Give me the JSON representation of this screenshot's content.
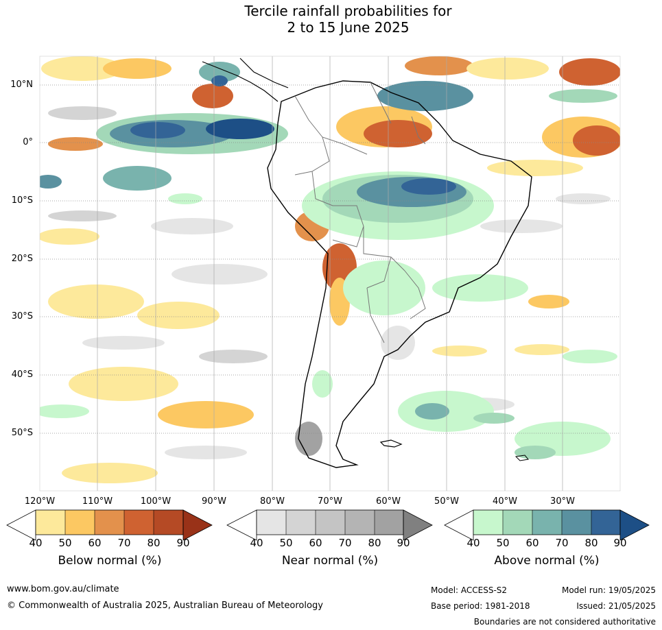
{
  "title": {
    "line1": "Tercile rainfall probabilities for",
    "line2": "2 to 15 June 2025"
  },
  "map": {
    "lat_labels": [
      "10°N",
      "0°",
      "10°S",
      "20°S",
      "30°S",
      "40°S",
      "50°S"
    ],
    "lon_labels": [
      "120°W",
      "110°W",
      "100°W",
      "90°W",
      "80°W",
      "70°W",
      "60°W",
      "50°W",
      "40°W",
      "30°W"
    ]
  },
  "colorbars": {
    "below": {
      "title": "Below normal (%)",
      "ticks": [
        "40",
        "50",
        "60",
        "70",
        "80",
        "90"
      ],
      "colors": [
        "#ffffff",
        "#fde99b",
        "#fcc862",
        "#e3914c",
        "#cf6231",
        "#b54a25",
        "#993218"
      ]
    },
    "near": {
      "title": "Near normal (%)",
      "ticks": [
        "40",
        "50",
        "60",
        "70",
        "80",
        "90"
      ],
      "colors": [
        "#ffffff",
        "#e5e5e5",
        "#d4d4d4",
        "#c4c4c4",
        "#b4b4b4",
        "#a2a2a2",
        "#808080"
      ]
    },
    "above": {
      "title": "Above normal (%)",
      "ticks": [
        "40",
        "50",
        "60",
        "70",
        "80",
        "90"
      ],
      "colors": [
        "#ffffff",
        "#c7f7cd",
        "#a3d8b8",
        "#79b3ad",
        "#5a91a0",
        "#336496",
        "#1d4f86"
      ]
    }
  },
  "footer": {
    "website": "www.bom.gov.au/climate",
    "copyright": "© Commonwealth of Australia 2025, Australian Bureau of Meteorology",
    "model": "Model: ACCESS-S2",
    "base_period": "Base period: 1981-2018",
    "model_run": "Model run: 19/05/2025",
    "issued": "Issued: 21/05/2025",
    "boundaries": "Boundaries are not considered authoritative"
  }
}
